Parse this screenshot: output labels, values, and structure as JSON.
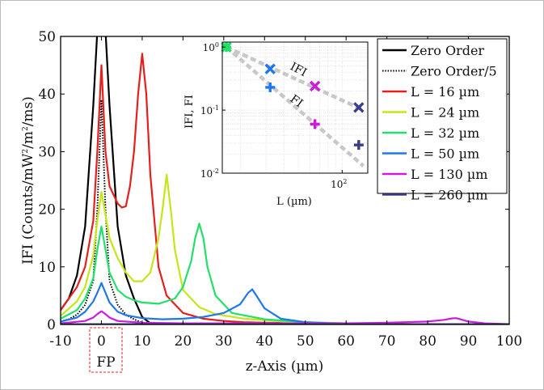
{
  "chart_data": [
    {
      "type": "line",
      "xlabel": "z-Axis (µm)",
      "ylabel_main": "IFI (Counts/mW",
      "ylabel_sup": "2",
      "ylabel_tail": "/m",
      "ylabel_sup2": "2",
      "ylabel_end": "/ms)",
      "xlim": [
        -10,
        100
      ],
      "ylim": [
        0,
        50
      ],
      "xticks": [
        "-10",
        "0",
        "10",
        "20",
        "30",
        "40",
        "50",
        "60",
        "70",
        "80",
        "90",
        "100"
      ],
      "yticks": [
        "0",
        "10",
        "20",
        "30",
        "40",
        "50"
      ],
      "focal_label": "FP",
      "legend_position": "top-right",
      "series": [
        {
          "name": "Zero Order",
          "color": "#000000",
          "style": "solid",
          "x": [
            -10,
            -8,
            -6,
            -4,
            -2,
            -1,
            0,
            1,
            2,
            4,
            6,
            8,
            10,
            12,
            14
          ],
          "y": [
            2.5,
            4.5,
            8.5,
            17,
            38,
            51,
            52,
            51,
            38,
            17,
            8.5,
            4.5,
            1.3,
            0.2,
            0
          ]
        },
        {
          "name": "Zero Order/5",
          "color": "#000000",
          "style": "dotted",
          "x": [
            -10,
            -8,
            -6,
            -4,
            -2,
            -1,
            0,
            1,
            2,
            4,
            6,
            8,
            10
          ],
          "y": [
            0.5,
            0.9,
            1.7,
            3.4,
            7.6,
            20,
            39,
            20,
            7.6,
            3.4,
            1.7,
            0.9,
            0.3
          ]
        },
        {
          "name": "L = 16 µm",
          "color": "#e4201c",
          "style": "solid",
          "x": [
            -10,
            -6,
            -4,
            -2,
            -1,
            0,
            1,
            2,
            4,
            5,
            6,
            7,
            8,
            9,
            10,
            11,
            12,
            14,
            16,
            20,
            25,
            30,
            35,
            40,
            50
          ],
          "y": [
            2.5,
            6.5,
            10,
            18,
            30,
            45,
            30,
            24,
            21,
            20.3,
            20.5,
            24,
            30,
            40,
            47,
            40,
            26,
            10,
            5,
            2,
            1,
            0.6,
            0.4,
            0.3,
            0.2
          ]
        },
        {
          "name": "L = 24 µm",
          "color": "#c6e617",
          "style": "solid",
          "x": [
            -10,
            -6,
            -4,
            -2,
            -1,
            0,
            1,
            2,
            4,
            6,
            8,
            10,
            12,
            14,
            15,
            16,
            17,
            18,
            20,
            24,
            28,
            35,
            45,
            60
          ],
          "y": [
            1.5,
            4,
            6.5,
            12,
            18,
            23,
            19,
            15,
            11.5,
            9,
            7.5,
            7.5,
            9,
            15,
            20,
            26,
            20,
            13,
            6,
            3,
            1.8,
            1,
            0.5,
            0.2
          ]
        },
        {
          "name": "L = 32 µm",
          "color": "#22e06a",
          "style": "solid",
          "x": [
            -10,
            -6,
            -4,
            -2,
            -1,
            0,
            1,
            2,
            4,
            6,
            8,
            10,
            14,
            18,
            20,
            22,
            23,
            24,
            25,
            26,
            28,
            32,
            40,
            50,
            65
          ],
          "y": [
            1,
            2.5,
            4.5,
            8,
            13,
            17,
            13,
            9,
            6,
            4.8,
            4.2,
            3.8,
            3.6,
            4.5,
            6.5,
            11,
            15,
            17.5,
            15,
            10,
            5,
            2,
            0.9,
            0.4,
            0.1
          ]
        },
        {
          "name": "L = 50 µm",
          "color": "#1e78ea",
          "style": "solid",
          "x": [
            -10,
            -6,
            -4,
            -2,
            -1,
            0,
            1,
            2,
            4,
            6,
            10,
            15,
            20,
            25,
            30,
            34,
            36,
            37,
            38,
            40,
            44,
            50,
            60,
            70
          ],
          "y": [
            0.5,
            1.2,
            2.2,
            4,
            5.5,
            7.2,
            5.5,
            3.8,
            2.2,
            1.6,
            1.1,
            0.9,
            1,
            1.3,
            2,
            3.5,
            5.5,
            6.1,
            5,
            2.8,
            1,
            0.4,
            0.1,
            0
          ]
        },
        {
          "name": "L = 130 µm",
          "color": "#cc1bdc",
          "style": "solid",
          "x": [
            -10,
            -4,
            -2,
            -1,
            0,
            1,
            2,
            4,
            10,
            20,
            40,
            60,
            70,
            80,
            84,
            86,
            87,
            88,
            90,
            94,
            100
          ],
          "y": [
            0.2,
            0.6,
            1.2,
            1.8,
            2.3,
            1.8,
            1.2,
            0.6,
            0.3,
            0.2,
            0.2,
            0.2,
            0.3,
            0.5,
            0.8,
            1.05,
            1.1,
            0.9,
            0.5,
            0.2,
            0.05
          ]
        },
        {
          "name": "L = 260 µm",
          "color": "#3c3c8c",
          "style": "solid",
          "x": [
            -10,
            0,
            20,
            50,
            100
          ],
          "y": [
            0.05,
            0.05,
            0.05,
            0.05,
            0.05
          ]
        }
      ]
    },
    {
      "type": "scatter",
      "scale": "log-log",
      "xlabel": "L (µm)",
      "ylabel": "IFI, FI",
      "xlim": [
        15,
        150
      ],
      "ylim": [
        0.01,
        1.2
      ],
      "xticks": [
        {
          "base": "10",
          "exp": "2"
        }
      ],
      "yticks": [
        {
          "base": "10",
          "exp": "0"
        },
        {
          "base": "10",
          "exp": "-1"
        },
        {
          "base": "10",
          "exp": "-2"
        }
      ],
      "trend_labels": [
        "IFI",
        "FI"
      ],
      "series": [
        {
          "name": "IFI",
          "marker": "x",
          "points": [
            {
              "x": 16,
              "y": 1.0,
              "color": "#22e06a"
            },
            {
              "x": 32,
              "y": 0.45,
              "color": "#1e78ea"
            },
            {
              "x": 65,
              "y": 0.24,
              "color": "#cc1bdc"
            },
            {
              "x": 130,
              "y": 0.11,
              "color": "#3c3c8c"
            }
          ]
        },
        {
          "name": "FI",
          "marker": "+",
          "points": [
            {
              "x": 16,
              "y": 1.0,
              "color": "#22e06a"
            },
            {
              "x": 32,
              "y": 0.23,
              "color": "#1e78ea"
            },
            {
              "x": 65,
              "y": 0.06,
              "color": "#cc1bdc"
            },
            {
              "x": 130,
              "y": 0.028,
              "color": "#3c3c8c"
            }
          ]
        }
      ],
      "trends": [
        {
          "name": "IFI",
          "color": "#c8c8c8",
          "x": [
            16,
            140
          ],
          "y": [
            1.0,
            0.1
          ]
        },
        {
          "name": "FI",
          "color": "#c8c8c8",
          "x": [
            16,
            140
          ],
          "y": [
            1.0,
            0.013
          ]
        }
      ]
    }
  ]
}
